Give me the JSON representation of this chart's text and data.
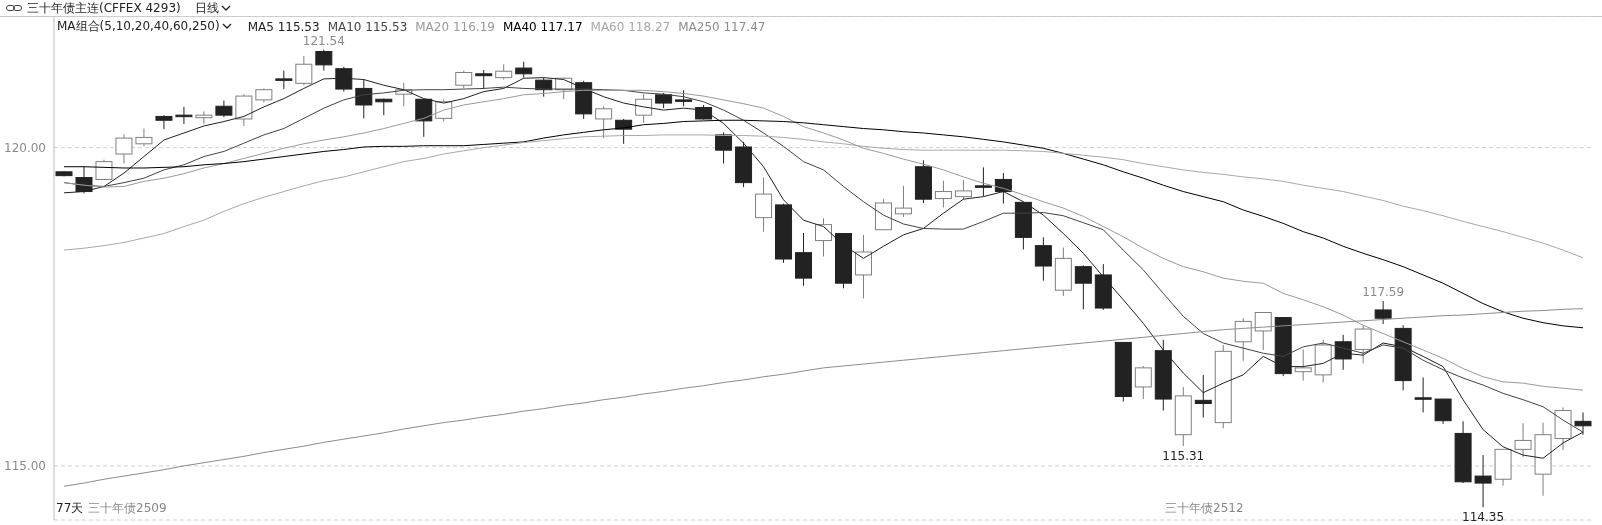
{
  "chart_data": {
    "type": "candlestick",
    "title": "三十年债主连(CFFEX 4293)",
    "subtitle": "日线",
    "legend_title": "MA组合(5,10,20,40,60,250)",
    "legend": "top left",
    "grid": "y",
    "categories": [
      null,
      null,
      null,
      null,
      null,
      null,
      null,
      null,
      null,
      null,
      null,
      null,
      null,
      null,
      null,
      null,
      null,
      null,
      null,
      null,
      null,
      null,
      null,
      null,
      null,
      null,
      null,
      null,
      null,
      null,
      null,
      null,
      null,
      null,
      null,
      null,
      null,
      null,
      null,
      null,
      null,
      null,
      null,
      null,
      null,
      null,
      null,
      null,
      null,
      null,
      null,
      null,
      null,
      null,
      null,
      null,
      null,
      null,
      null,
      null,
      null,
      null,
      null,
      null,
      null,
      null,
      null,
      null,
      null,
      null,
      null,
      null,
      null,
      null,
      null,
      null,
      null
    ],
    "ylim": [
      114.15,
      122.06
    ],
    "yticks": [
      {
        "value": 115,
        "label": "115.00"
      },
      {
        "value": 120,
        "label": "120.00"
      }
    ],
    "ohlc": [
      [
        119.62,
        119.63,
        119.55,
        119.56
      ],
      [
        119.53,
        119.7,
        119.28,
        119.31
      ],
      [
        119.5,
        119.81,
        119.5,
        119.78
      ],
      [
        119.9,
        120.21,
        119.75,
        120.15
      ],
      [
        120.06,
        120.3,
        120.02,
        120.16
      ],
      [
        120.49,
        120.51,
        120.29,
        120.43
      ],
      [
        120.51,
        120.64,
        120.37,
        120.49
      ],
      [
        120.47,
        120.57,
        120.37,
        120.51
      ],
      [
        120.65,
        120.74,
        120.48,
        120.51
      ],
      [
        120.45,
        120.84,
        120.34,
        120.81
      ],
      [
        120.75,
        120.93,
        120.71,
        120.91
      ],
      [
        121.08,
        121.21,
        120.92,
        121.07
      ],
      [
        121.01,
        121.44,
        120.98,
        121.31
      ],
      [
        121.51,
        121.54,
        121.21,
        121.3
      ],
      [
        121.24,
        121.27,
        120.88,
        120.92
      ],
      [
        120.93,
        121.07,
        120.46,
        120.67
      ],
      [
        120.76,
        120.77,
        120.51,
        120.72
      ],
      [
        120.84,
        121.02,
        120.65,
        120.91
      ],
      [
        120.76,
        120.76,
        120.17,
        120.42
      ],
      [
        120.46,
        120.76,
        120.41,
        120.72
      ],
      [
        120.98,
        121.21,
        120.93,
        121.18
      ],
      [
        121.16,
        121.22,
        120.92,
        121.13
      ],
      [
        121.1,
        121.31,
        121.07,
        121.2
      ],
      [
        121.25,
        121.35,
        121.1,
        121.16
      ],
      [
        121.06,
        121.1,
        120.8,
        120.91
      ],
      [
        120.91,
        121.1,
        120.76,
        121.09
      ],
      [
        121.02,
        121.05,
        120.45,
        120.53
      ],
      [
        120.45,
        120.65,
        120.15,
        120.61
      ],
      [
        120.43,
        120.45,
        120.06,
        120.29
      ],
      [
        120.51,
        120.84,
        120.39,
        120.76
      ],
      [
        120.83,
        120.86,
        120.62,
        120.7
      ],
      [
        120.75,
        120.9,
        120.65,
        120.74
      ],
      [
        120.63,
        120.67,
        120.44,
        120.45
      ],
      [
        120.2,
        120.24,
        119.75,
        119.96
      ],
      [
        120.01,
        120.09,
        119.38,
        119.45
      ],
      [
        118.9,
        119.53,
        118.68,
        119.27
      ],
      [
        119.1,
        119.12,
        118.19,
        118.25
      ],
      [
        118.35,
        118.66,
        117.83,
        117.95
      ],
      [
        118.54,
        118.89,
        118.29,
        118.79
      ],
      [
        118.65,
        118.65,
        117.79,
        117.87
      ],
      [
        118.0,
        118.63,
        117.63,
        118.36
      ],
      [
        118.71,
        119.19,
        118.71,
        119.13
      ],
      [
        118.96,
        119.4,
        118.91,
        119.05
      ],
      [
        119.7,
        119.8,
        119.13,
        119.19
      ],
      [
        119.2,
        119.48,
        119.06,
        119.31
      ],
      [
        119.23,
        119.49,
        119.18,
        119.32
      ],
      [
        119.4,
        119.69,
        119.24,
        119.39
      ],
      [
        119.5,
        119.6,
        119.12,
        119.31
      ],
      [
        119.14,
        119.14,
        118.4,
        118.59
      ],
      [
        118.46,
        118.59,
        117.91,
        118.14
      ],
      [
        117.76,
        118.43,
        117.67,
        118.26
      ],
      [
        118.13,
        118.15,
        117.46,
        117.87
      ],
      [
        118.0,
        118.17,
        117.45,
        117.48
      ],
      [
        116.94,
        116.94,
        116.01,
        116.09
      ],
      [
        116.24,
        116.57,
        116.05,
        116.54
      ],
      [
        116.81,
        116.98,
        115.87,
        116.05
      ],
      [
        115.49,
        116.24,
        115.31,
        116.1
      ],
      [
        116.03,
        116.43,
        115.76,
        115.98
      ],
      [
        115.68,
        116.9,
        115.59,
        116.8
      ],
      [
        116.95,
        117.32,
        116.65,
        117.27
      ],
      [
        117.12,
        117.41,
        116.82,
        117.41
      ],
      [
        117.33,
        117.33,
        116.41,
        116.45
      ],
      [
        116.48,
        116.83,
        116.34,
        116.54
      ],
      [
        116.43,
        116.98,
        116.31,
        116.9
      ],
      [
        116.95,
        117.06,
        116.51,
        116.68
      ],
      [
        116.83,
        117.21,
        116.61,
        117.15
      ],
      [
        117.45,
        117.59,
        117.23,
        117.32
      ],
      [
        117.16,
        117.21,
        116.19,
        116.34
      ],
      [
        116.07,
        116.39,
        115.84,
        116.06
      ],
      [
        116.05,
        116.05,
        115.66,
        115.71
      ],
      [
        115.51,
        115.7,
        114.73,
        114.75
      ],
      [
        114.84,
        115.17,
        114.35,
        114.73
      ],
      [
        114.79,
        115.26,
        114.69,
        115.26
      ],
      [
        115.26,
        115.67,
        115.14,
        115.4
      ],
      [
        114.87,
        115.68,
        114.53,
        115.49
      ],
      [
        115.43,
        115.92,
        115.25,
        115.87
      ],
      [
        115.7,
        115.84,
        115.49,
        115.63
      ]
    ],
    "colors": [
      "#222222",
      "#222222",
      "#7f7f7f",
      "#7f7f7f",
      "#7f7f7f",
      "#222222",
      "#222222",
      "#7f7f7f",
      "#222222",
      "#7f7f7f",
      "#7f7f7f",
      "#222222",
      "#7f7f7f",
      "#222222",
      "#222222",
      "#222222",
      "#222222",
      "#7f7f7f",
      "#222222",
      "#7f7f7f",
      "#7f7f7f",
      "#222222",
      "#7f7f7f",
      "#222222",
      "#222222",
      "#7f7f7f",
      "#222222",
      "#7f7f7f",
      "#222222",
      "#7f7f7f",
      "#222222",
      "#222222",
      "#222222",
      "#222222",
      "#222222",
      "#7f7f7f",
      "#222222",
      "#222222",
      "#7f7f7f",
      "#222222",
      "#7f7f7f",
      "#7f7f7f",
      "#7f7f7f",
      "#222222",
      "#7f7f7f",
      "#7f7f7f",
      "#222222",
      "#222222",
      "#222222",
      "#222222",
      "#7f7f7f",
      "#222222",
      "#222222",
      "#222222",
      "#7f7f7f",
      "#222222",
      "#7f7f7f",
      "#222222",
      "#7f7f7f",
      "#7f7f7f",
      "#7f7f7f",
      "#222222",
      "#7f7f7f",
      "#7f7f7f",
      "#222222",
      "#7f7f7f",
      "#222222",
      "#222222",
      "#222222",
      "#222222",
      "#222222",
      "#222222",
      "#7f7f7f",
      "#7f7f7f",
      "#7f7f7f",
      "#7f7f7f",
      "#222222"
    ],
    "series": [
      {
        "type": "line",
        "name": "MA5 115.53",
        "color": "#222222",
        "values": [
          119.29,
          119.31,
          119.39,
          119.6,
          119.86,
          120.12,
          120.23,
          120.34,
          120.41,
          120.49,
          120.64,
          120.77,
          120.93,
          121.08,
          121.09,
          121.07,
          120.98,
          120.91,
          120.77,
          120.7,
          120.77,
          120.88,
          120.93,
          121.09,
          121.1,
          121.07,
          120.93,
          120.8,
          120.7,
          120.64,
          120.59,
          120.62,
          120.59,
          120.38,
          120.07,
          119.7,
          119.18,
          118.86,
          118.76,
          118.47,
          118.26,
          118.45,
          118.63,
          118.73,
          118.97,
          119.19,
          119.23,
          119.31,
          119.15,
          118.94,
          118.65,
          118.34,
          117.97,
          117.61,
          117.24,
          116.82,
          116.46,
          116.15,
          116.3,
          116.43,
          116.72,
          116.56,
          116.56,
          116.61,
          116.77,
          116.74,
          116.93,
          116.87,
          116.72,
          116.56,
          116.04,
          115.57,
          115.3,
          115.17,
          115.12,
          115.36,
          115.53
        ]
      },
      {
        "type": "line",
        "name": "MA10 115.53",
        "color": "#444444",
        "values": [
          119.45,
          119.41,
          119.39,
          119.45,
          119.52,
          119.65,
          119.73,
          119.86,
          119.94,
          120.07,
          120.2,
          120.3,
          120.46,
          120.62,
          120.75,
          120.83,
          120.86,
          120.9,
          120.91,
          120.91,
          120.92,
          120.93,
          120.95,
          120.93,
          120.92,
          120.92,
          120.92,
          120.91,
          120.9,
          120.86,
          120.84,
          120.8,
          120.72,
          120.59,
          120.43,
          120.23,
          120.02,
          119.78,
          119.65,
          119.39,
          119.15,
          118.94,
          118.8,
          118.73,
          118.72,
          118.72,
          118.84,
          118.97,
          118.97,
          118.98,
          118.93,
          118.82,
          118.71,
          118.39,
          118.08,
          117.71,
          117.35,
          117.08,
          116.93,
          116.85,
          116.77,
          116.72,
          116.87,
          116.93,
          116.85,
          116.77,
          116.9,
          116.85,
          116.66,
          116.51,
          116.38,
          116.27,
          116.14,
          116.04,
          115.93,
          115.72,
          115.53
        ]
      },
      {
        "type": "line",
        "name": "MA20 116.19",
        "color": "#9a9a9a",
        "values": [
          119.45,
          119.41,
          119.38,
          119.39,
          119.47,
          119.52,
          119.59,
          119.68,
          119.75,
          119.83,
          119.91,
          119.99,
          120.06,
          120.12,
          120.17,
          120.23,
          120.3,
          120.38,
          120.46,
          120.59,
          120.67,
          120.72,
          120.77,
          120.83,
          120.85,
          120.88,
          120.9,
          120.9,
          120.9,
          120.9,
          120.88,
          120.85,
          120.81,
          120.75,
          120.69,
          120.62,
          120.49,
          120.33,
          120.23,
          120.12,
          119.99,
          119.91,
          119.82,
          119.74,
          119.65,
          119.54,
          119.44,
          119.36,
          119.26,
          119.15,
          119.05,
          118.92,
          118.76,
          118.6,
          118.42,
          118.26,
          118.13,
          118.05,
          117.95,
          117.9,
          117.87,
          117.71,
          117.61,
          117.5,
          117.37,
          117.21,
          117.08,
          116.95,
          116.82,
          116.69,
          116.53,
          116.4,
          116.32,
          116.3,
          116.25,
          116.22,
          116.19
        ]
      },
      {
        "type": "line",
        "name": "MA40 117.17",
        "color": "#000000",
        "values": [
          119.7,
          119.7,
          119.69,
          119.68,
          119.68,
          119.69,
          119.7,
          119.73,
          119.75,
          119.78,
          119.82,
          119.86,
          119.9,
          119.94,
          119.97,
          120.01,
          120.02,
          120.02,
          120.03,
          120.03,
          120.03,
          120.05,
          120.07,
          120.09,
          120.15,
          120.2,
          120.24,
          120.28,
          120.31,
          120.36,
          120.38,
          120.41,
          120.42,
          120.43,
          120.43,
          120.42,
          120.41,
          120.39,
          120.36,
          120.33,
          120.3,
          120.28,
          120.25,
          120.23,
          120.2,
          120.17,
          120.13,
          120.09,
          120.04,
          119.99,
          119.91,
          119.82,
          119.73,
          119.62,
          119.52,
          119.41,
          119.31,
          119.23,
          119.15,
          119.02,
          118.92,
          118.81,
          118.68,
          118.58,
          118.45,
          118.34,
          118.24,
          118.13,
          118.0,
          117.87,
          117.71,
          117.55,
          117.42,
          117.32,
          117.25,
          117.2,
          117.17
        ]
      },
      {
        "type": "line",
        "name": "MA60 118.27",
        "color": "#a8a8a8",
        "values": [
          118.39,
          118.42,
          118.46,
          118.51,
          118.58,
          118.65,
          118.76,
          118.86,
          119.0,
          119.12,
          119.22,
          119.31,
          119.4,
          119.48,
          119.54,
          119.62,
          119.7,
          119.78,
          119.83,
          119.9,
          119.95,
          120.0,
          120.04,
          120.08,
          120.11,
          120.14,
          120.17,
          120.18,
          120.19,
          120.19,
          120.2,
          120.2,
          120.2,
          120.19,
          120.19,
          120.18,
          120.16,
          120.13,
          120.09,
          120.06,
          120.02,
          119.99,
          119.97,
          119.96,
          119.96,
          119.96,
          119.96,
          119.96,
          119.95,
          119.94,
          119.91,
          119.88,
          119.85,
          119.81,
          119.75,
          119.7,
          119.65,
          119.61,
          119.58,
          119.54,
          119.51,
          119.47,
          119.41,
          119.36,
          119.31,
          119.24,
          119.17,
          119.08,
          119.01,
          118.93,
          118.84,
          118.76,
          118.68,
          118.59,
          118.5,
          118.39,
          118.27
        ]
      },
      {
        "type": "line",
        "name": "MA250 117.47",
        "color": "#8c8c8c",
        "values": [
          114.68,
          114.73,
          114.79,
          114.84,
          114.89,
          114.94,
          115.0,
          115.05,
          115.1,
          115.15,
          115.21,
          115.26,
          115.31,
          115.37,
          115.42,
          115.47,
          115.52,
          115.58,
          115.63,
          115.68,
          115.72,
          115.77,
          115.81,
          115.86,
          115.9,
          115.95,
          115.99,
          116.04,
          116.08,
          116.13,
          116.17,
          116.22,
          116.26,
          116.31,
          116.35,
          116.4,
          116.44,
          116.49,
          116.54,
          116.57,
          116.6,
          116.63,
          116.66,
          116.69,
          116.72,
          116.75,
          116.78,
          116.81,
          116.84,
          116.87,
          116.9,
          116.93,
          116.96,
          116.99,
          117.02,
          117.05,
          117.08,
          117.11,
          117.14,
          117.16,
          117.18,
          117.2,
          117.22,
          117.24,
          117.26,
          117.28,
          117.3,
          117.32,
          117.34,
          117.36,
          117.37,
          117.39,
          117.41,
          117.43,
          117.44,
          117.46,
          117.47
        ]
      }
    ],
    "annotations": [
      {
        "text": "121.54",
        "y": 121.54
      },
      {
        "text": "115.31",
        "y": 115.31
      },
      {
        "text": "117.59",
        "y": 117.59
      },
      {
        "text": "114.35",
        "y": 114.35
      },
      "77天",
      "三十年债2509",
      "三十年债2512"
    ]
  }
}
